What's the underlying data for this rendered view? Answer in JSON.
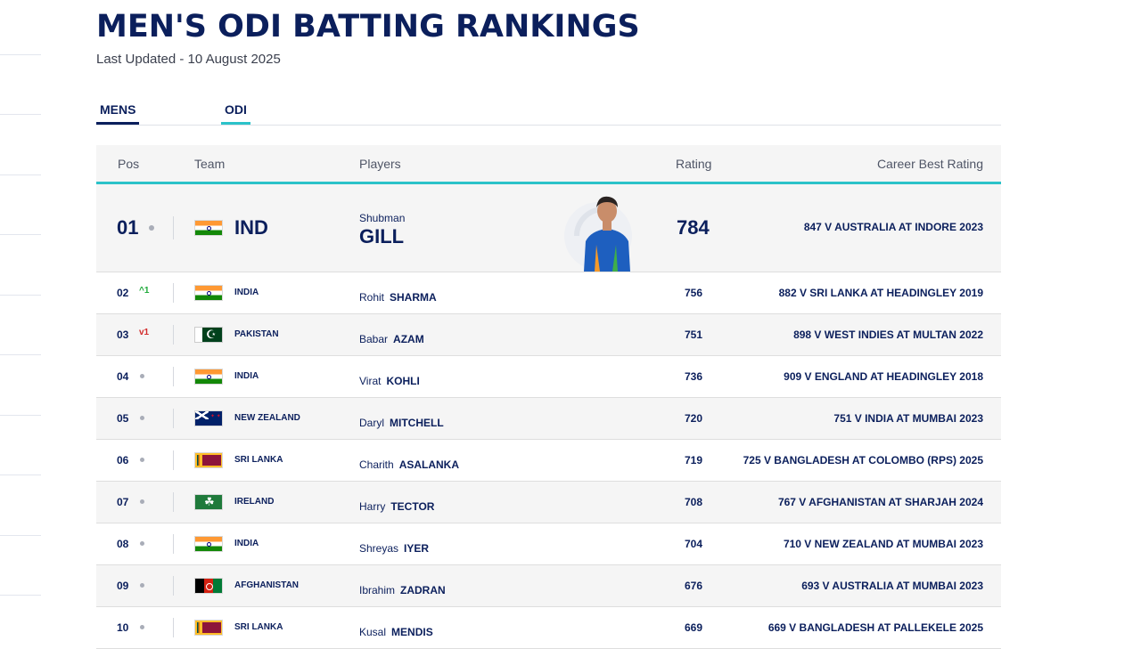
{
  "page": {
    "title": "MEN'S ODI BATTING RANKINGS",
    "updated": "Last Updated - 10 August 2025"
  },
  "filters": [
    {
      "label": "MENS"
    },
    {
      "label": "ODI"
    }
  ],
  "headers": {
    "pos": "Pos",
    "team": "Team",
    "players": "Players",
    "rating": "Rating",
    "best": "Career Best Rating"
  },
  "top": {
    "pos": "01",
    "team": "IND",
    "first_name": "Shubman",
    "last_name": "GILL",
    "rating": "784",
    "best": "847 V AUSTRALIA AT INDORE 2023",
    "flag": "india-flag"
  },
  "rows": [
    {
      "pos": "02",
      "move": "^1",
      "move_dir": "up",
      "team": "INDIA",
      "flag": "ind",
      "first": "Rohit",
      "last": "SHARMA",
      "rating": "756",
      "best": "882 V SRI LANKA AT HEADINGLEY 2019"
    },
    {
      "pos": "03",
      "move": "v1",
      "move_dir": "down",
      "team": "PAKISTAN",
      "flag": "pak",
      "first": "Babar",
      "last": "AZAM",
      "rating": "751",
      "best": "898 V WEST INDIES AT MULTAN 2022"
    },
    {
      "pos": "04",
      "move": "",
      "move_dir": "none",
      "team": "INDIA",
      "flag": "ind",
      "first": "Virat",
      "last": "KOHLI",
      "rating": "736",
      "best": "909 V ENGLAND AT HEADINGLEY 2018"
    },
    {
      "pos": "05",
      "move": "",
      "move_dir": "none",
      "team": "NEW ZEALAND",
      "flag": "nz",
      "first": "Daryl",
      "last": "MITCHELL",
      "rating": "720",
      "best": "751 V INDIA AT MUMBAI 2023"
    },
    {
      "pos": "06",
      "move": "",
      "move_dir": "none",
      "team": "SRI LANKA",
      "flag": "sl",
      "first": "Charith",
      "last": "ASALANKA",
      "rating": "719",
      "best": "725 V BANGLADESH AT COLOMBO (RPS) 2025"
    },
    {
      "pos": "07",
      "move": "",
      "move_dir": "none",
      "team": "IRELAND",
      "flag": "irl",
      "first": "Harry",
      "last": "TECTOR",
      "rating": "708",
      "best": "767 V AFGHANISTAN AT SHARJAH 2024"
    },
    {
      "pos": "08",
      "move": "",
      "move_dir": "none",
      "team": "INDIA",
      "flag": "ind",
      "first": "Shreyas",
      "last": "IYER",
      "rating": "704",
      "best": "710 V NEW ZEALAND AT MUMBAI 2023"
    },
    {
      "pos": "09",
      "move": "",
      "move_dir": "none",
      "team": "AFGHANISTAN",
      "flag": "afg",
      "first": "Ibrahim",
      "last": "ZADRAN",
      "rating": "676",
      "best": "693 V AUSTRALIA AT MUMBAI 2023"
    },
    {
      "pos": "10",
      "move": "",
      "move_dir": "none",
      "team": "SRI LANKA",
      "flag": "sl",
      "first": "Kusal",
      "last": "MENDIS",
      "rating": "669",
      "best": "669 V BANGLADESH AT PALLEKELE 2025"
    }
  ],
  "colors": {
    "navy": "#0b1f5c",
    "accent": "#2bc2c9",
    "up": "#1faa3a",
    "down": "#d22b2b"
  }
}
